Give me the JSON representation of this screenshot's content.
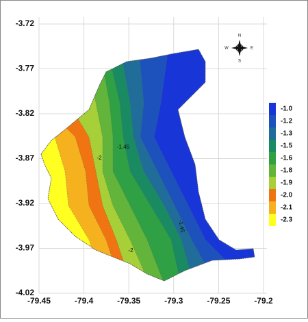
{
  "map": {
    "xlim": [
      -79.45,
      -79.2
    ],
    "ylim": [
      -4.02,
      -3.72
    ],
    "xticks": [
      -79.45,
      -79.4,
      -79.35,
      -79.3,
      -79.25,
      -79.2
    ],
    "yticks": [
      -4.02,
      -3.97,
      -3.92,
      -3.87,
      -3.82,
      -3.77,
      -3.72
    ],
    "grid": true,
    "legend": [
      {
        "label": "-1.0",
        "color": "#1836d8"
      },
      {
        "label": "-1.2",
        "color": "#1d52bc"
      },
      {
        "label": "-1.3",
        "color": "#1f6d98"
      },
      {
        "label": "-1.5",
        "color": "#1a8a62"
      },
      {
        "label": "-1.6",
        "color": "#2fa043"
      },
      {
        "label": "-1.8",
        "color": "#62b43a"
      },
      {
        "label": "-1.9",
        "color": "#a6cf38"
      },
      {
        "label": "-2.0",
        "color": "#f07412"
      },
      {
        "label": "-2.1",
        "color": "#f6b11f"
      },
      {
        "label": "-2.3",
        "color": "#ffff22"
      }
    ],
    "contour_labels": [
      "-1.45",
      "-2",
      "-1.45",
      "-2"
    ],
    "compass": [
      "N",
      "E",
      "S",
      "W"
    ]
  }
}
